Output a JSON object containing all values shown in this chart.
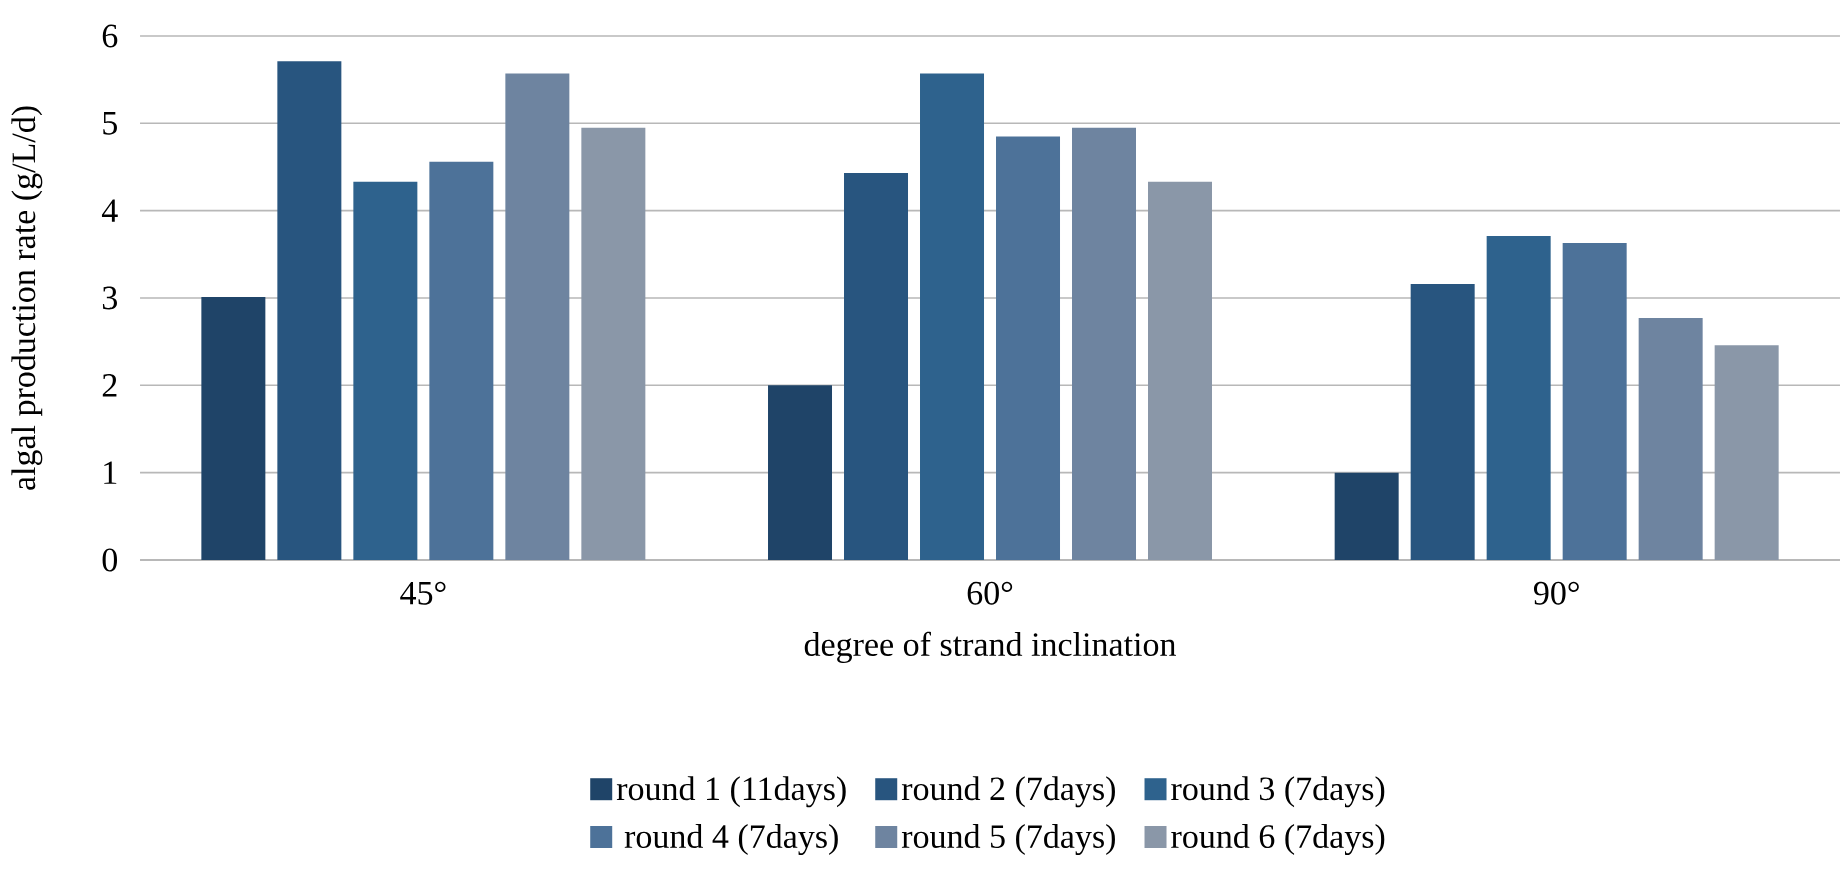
{
  "chart_data": {
    "type": "bar",
    "xlabel": "degree of strand inclination",
    "ylabel": "algal production rate (g/L/d)",
    "categories": [
      "45°",
      "60°",
      "90°"
    ],
    "series": [
      {
        "name": "round 1 (11days)",
        "color": "#1f4468",
        "values": [
          3.01,
          2.0,
          1.0
        ]
      },
      {
        "name": "round 2 (7days)",
        "color": "#28557f",
        "values": [
          5.71,
          4.43,
          3.16
        ]
      },
      {
        "name": "round 3 (7days)",
        "color": "#2e628d",
        "values": [
          4.33,
          5.57,
          3.71
        ]
      },
      {
        "name": "round 4 (7days)",
        "color": "#4d7299",
        "values": [
          4.56,
          4.85,
          3.63
        ]
      },
      {
        "name": "round 5 (7days)",
        "color": "#6e84a0",
        "values": [
          5.57,
          4.95,
          2.77
        ]
      },
      {
        "name": "round 6 (7days)",
        "color": "#8a97a8",
        "values": [
          4.95,
          4.33,
          2.46
        ]
      }
    ],
    "ylim": [
      0,
      6
    ],
    "yticks": [
      0,
      1,
      2,
      3,
      4,
      5,
      6
    ],
    "grid": "y",
    "legend": "bottom"
  }
}
